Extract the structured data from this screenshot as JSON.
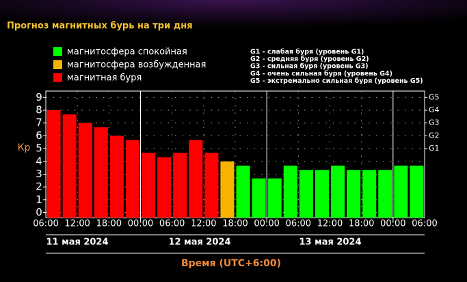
{
  "chart_data": {
    "type": "bar",
    "title": "Прогноз магнитных бурь на три дня",
    "legend": [
      {
        "label": "магнитосфера спокойная",
        "color": "#00ff00"
      },
      {
        "label": "магнитосфера возбужденная",
        "color": "#f5b400"
      },
      {
        "label": "магнитная буря",
        "color": "#ff0000"
      }
    ],
    "storm_levels": [
      "G1 - слабая буря (уровень G1)",
      "G2 - средняя буря (уровень G2)",
      "G3 - сильная буря (уровень G3)",
      "G4 - очень сильная буря (уровень G4)",
      "G5 - экстремально сильная буря (уровень G5)"
    ],
    "y_label": "Кр",
    "x_label": "Время (UTC+6:00)",
    "categories": [
      null,
      null,
      null,
      null,
      null,
      null,
      null,
      null,
      null,
      null,
      null,
      null,
      null,
      null,
      null,
      null,
      null,
      null,
      null,
      null,
      null,
      null,
      null,
      null
    ],
    "values": [
      8,
      7.67,
      7,
      6.67,
      6,
      5.67,
      4.67,
      4.33,
      4.67,
      5.67,
      4.67,
      4,
      3.67,
      2.67,
      2.67,
      3.67,
      3.33,
      3.33,
      3.67,
      3.33,
      3.33,
      3.33,
      3.67,
      3.67
    ],
    "colors": [
      "#ff0000",
      "#ff0000",
      "#ff0000",
      "#ff0000",
      "#ff0000",
      "#ff0000",
      "#ff0000",
      "#ff0000",
      "#ff0000",
      "#ff0000",
      "#ff0000",
      "#f5b400",
      "#00ff00",
      "#00ff00",
      "#00ff00",
      "#00ff00",
      "#00ff00",
      "#00ff00",
      "#00ff00",
      "#00ff00",
      "#00ff00",
      "#00ff00",
      "#00ff00",
      "#00ff00"
    ],
    "xtick_labels": [
      "06:00",
      "12:00",
      "18:00",
      "00:00",
      "06:00",
      "12:00",
      "18:00",
      "00:00",
      "06:00",
      "12:00",
      "18:00",
      "00:00",
      "06:00"
    ],
    "day_labels": [
      "11 мая 2024",
      "12 мая 2024",
      "13 мая 2024"
    ],
    "ylim": [
      -0.4,
      9.5
    ],
    "yticks": [
      0,
      1,
      2,
      3,
      4,
      5,
      6,
      7,
      8,
      9
    ],
    "y2lim": [
      -0.4,
      9.5
    ],
    "y2ticks": [
      {
        "value": 5,
        "label": "G1"
      },
      {
        "value": 6,
        "label": "G2"
      },
      {
        "value": 7,
        "label": "G3"
      },
      {
        "value": 8,
        "label": "G4"
      },
      {
        "value": 9,
        "label": "G5"
      }
    ],
    "grid": true
  }
}
